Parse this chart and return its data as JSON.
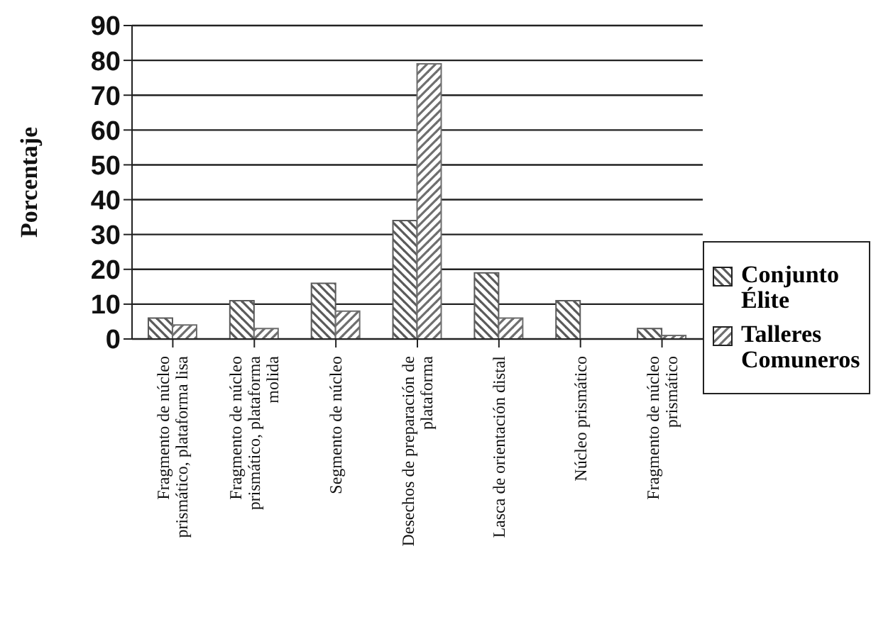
{
  "chart_data": {
    "type": "bar",
    "ylabel": "Porcentaje",
    "categories": [
      "Fragmento de núcleo prismático, plataforma lisa",
      "Fragmento de núcleo prismático, plataforma molida",
      "Segmento de núcleo",
      "Desechos de preparación de plataforma",
      "Lasca de orientación distal",
      "Núcleo prismático",
      "Fragmento de núcleo prismático"
    ],
    "series": [
      {
        "name": "Conjunto Élite",
        "color": "#5a5a5a",
        "values": [
          6,
          11,
          16,
          34,
          19,
          11,
          3
        ]
      },
      {
        "name": "Talleres Comuneros",
        "color": "#6e6e6e",
        "values": [
          4,
          3,
          8,
          79,
          6,
          0,
          1
        ]
      }
    ],
    "ylim": [
      0,
      90
    ],
    "yticks": [
      0,
      10,
      20,
      30,
      40,
      50,
      60,
      70,
      80,
      90
    ],
    "grid": "y",
    "legend": "right"
  }
}
